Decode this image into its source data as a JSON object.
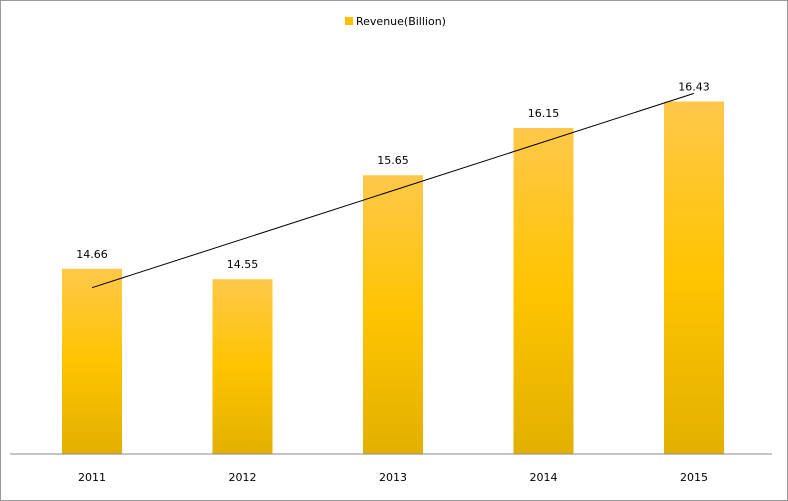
{
  "chart_data": {
    "type": "bar",
    "categories": [
      "2011",
      "2012",
      "2013",
      "2014",
      "2015"
    ],
    "series": [
      {
        "name": "Revenue(Billion)",
        "values": [
          14.66,
          14.55,
          15.65,
          16.15,
          16.43
        ]
      }
    ],
    "trendline": true,
    "legend": {
      "position": "top-center",
      "label": "Revenue(Billion)"
    },
    "ylim": [
      12.7,
      16.7
    ],
    "grid": false,
    "bar_color": "#FFC000",
    "trendline_color": "#000000",
    "axis_color": "#888888"
  }
}
